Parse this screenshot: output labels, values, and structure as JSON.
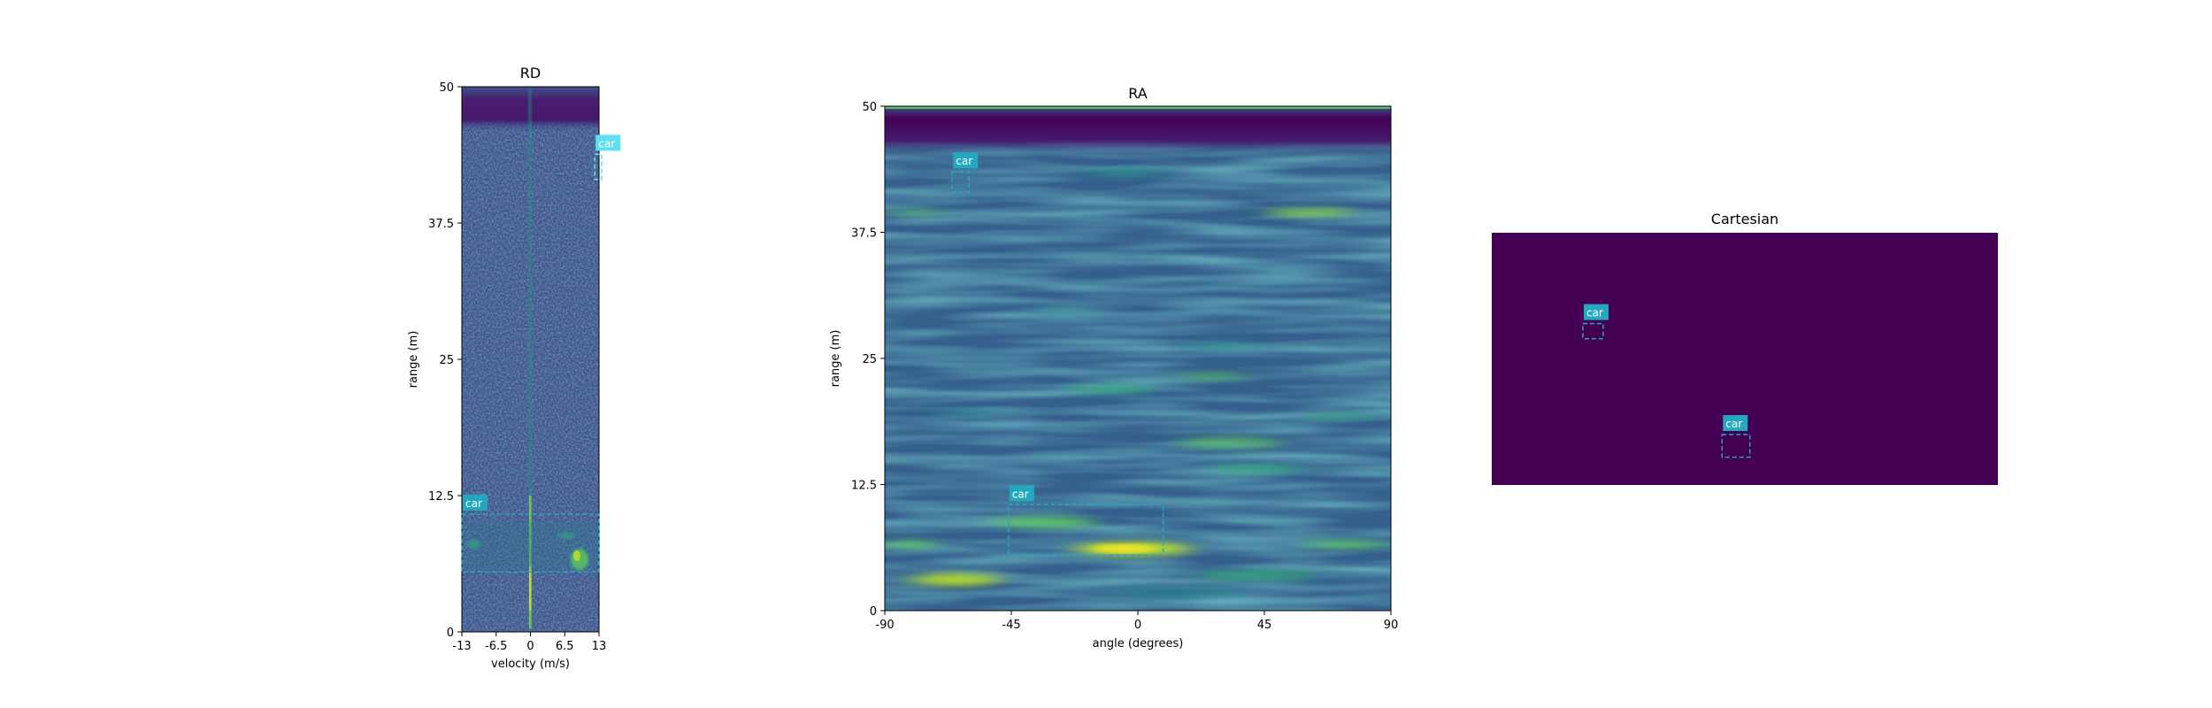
{
  "chart_data": [
    {
      "id": "rd",
      "type": "heatmap",
      "title": "RD",
      "xlabel": "velocity (m/s)",
      "ylabel": "range (m)",
      "xlim": [
        -13,
        13
      ],
      "ylim": [
        0,
        50
      ],
      "xticks": [
        -13,
        -6.5,
        0,
        6.5,
        13
      ],
      "xtick_labels": [
        "-13",
        "-6.5",
        "0",
        "6.5",
        "13"
      ],
      "yticks": [
        0,
        12.5,
        25,
        37.5,
        50
      ],
      "ytick_labels": [
        "0",
        "12.5",
        "25",
        "37.5",
        "50"
      ],
      "colormap": "viridis",
      "detections": [
        {
          "label": "car",
          "x": [
            -13,
            13
          ],
          "y": [
            5.5,
            10.8
          ],
          "color": "#23a8c0"
        },
        {
          "label": "car",
          "x": [
            12.2,
            13.5
          ],
          "y": [
            41.5,
            43.8
          ],
          "color": "#5fe0f0"
        }
      ]
    },
    {
      "id": "ra",
      "type": "heatmap",
      "title": "RA",
      "xlabel": "angle (degrees)",
      "ylabel": "range (m)",
      "xlim": [
        -90,
        90
      ],
      "ylim": [
        0,
        50
      ],
      "xticks": [
        -90,
        -45,
        0,
        45,
        90
      ],
      "xtick_labels": [
        "-90",
        "-45",
        "0",
        "45",
        "90"
      ],
      "yticks": [
        0,
        12.5,
        25,
        37.5,
        50
      ],
      "ytick_labels": [
        "0",
        "12.5",
        "25",
        "37.5",
        "50"
      ],
      "colormap": "viridis",
      "detections": [
        {
          "label": "car",
          "x": [
            -66,
            -60
          ],
          "y": [
            41.5,
            43.5
          ],
          "color": "#23a8c0"
        },
        {
          "label": "car",
          "x": [
            -46,
            9
          ],
          "y": [
            5.5,
            10.5
          ],
          "color": "#23a8c0"
        }
      ]
    },
    {
      "id": "cartesian",
      "type": "heatmap",
      "title": "Cartesian",
      "colormap": "viridis",
      "background": "#440154",
      "detections": [
        {
          "label": "car",
          "x": [
            0.18,
            0.22
          ],
          "y": [
            0.58,
            0.64
          ],
          "color": "#23a8c0"
        },
        {
          "label": "car",
          "x": [
            0.455,
            0.51
          ],
          "y": [
            0.11,
            0.2
          ],
          "color": "#23a8c0"
        }
      ]
    }
  ],
  "colors": {
    "viridis_dark": "#440154",
    "viridis_blue": "#3b528b",
    "viridis_teal": "#21918c",
    "viridis_green": "#5ec962",
    "viridis_yellow": "#fde725",
    "detection_box": "#23a8c0"
  }
}
